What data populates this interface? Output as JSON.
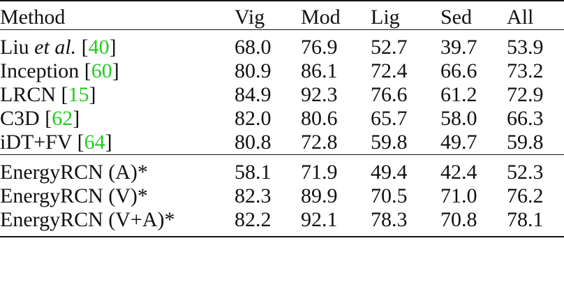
{
  "table": {
    "columns": [
      "Method",
      "Vig",
      "Mod",
      "Lig",
      "Sed",
      "All"
    ],
    "rows": [
      {
        "name": "Liu",
        "name_italic": "et al.",
        "ref": "40",
        "values": [
          "68.0",
          "76.9",
          "52.7",
          "39.7",
          "53.9"
        ]
      },
      {
        "name": "Inception",
        "ref": "60",
        "values": [
          "80.9",
          "86.1",
          "72.4",
          "66.6",
          "73.2"
        ]
      },
      {
        "name": "LRCN",
        "ref": "15",
        "values": [
          "84.9",
          "92.3",
          "76.6",
          "61.2",
          "72.9"
        ],
        "bold": [
          true,
          true,
          false,
          false,
          false
        ]
      },
      {
        "name": "C3D",
        "ref": "62",
        "values": [
          "82.0",
          "80.6",
          "65.7",
          "58.0",
          "66.3"
        ]
      },
      {
        "name": "iDT+FV",
        "ref": "64",
        "values": [
          "80.8",
          "72.8",
          "59.8",
          "49.7",
          "59.8"
        ]
      },
      {
        "name": "EnergyRCN (A)*",
        "values": [
          "58.1",
          "71.9",
          "49.4",
          "42.4",
          "52.3"
        ]
      },
      {
        "name": "EnergyRCN (V)*",
        "values": [
          "82.3",
          "89.9",
          "70.5",
          "71.0",
          "76.2"
        ],
        "bold": [
          false,
          false,
          false,
          true,
          false
        ]
      },
      {
        "name": "EnergyRCN (V+A)*",
        "values": [
          "82.2",
          "92.1",
          "78.3",
          "70.8",
          "78.1"
        ],
        "bold": [
          false,
          false,
          true,
          false,
          true
        ]
      }
    ]
  },
  "colors": {
    "text": "#111111",
    "citation": "#22cc22",
    "background": "#ffffff"
  }
}
